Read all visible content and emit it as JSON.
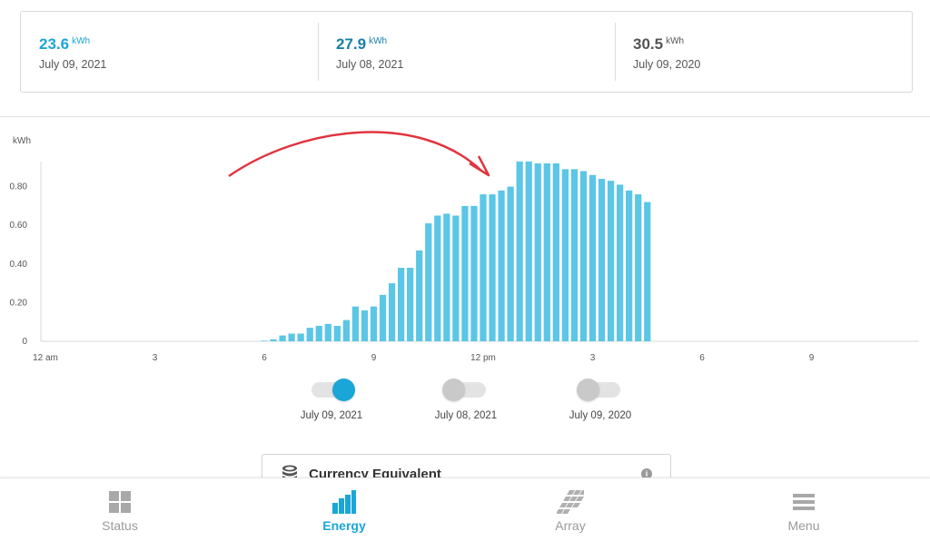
{
  "stats": [
    {
      "value": "23.6",
      "unit": "kWh",
      "date": "July 09, 2021",
      "color": "#1aa6d7"
    },
    {
      "value": "27.9",
      "unit": "kWh",
      "date": "July 08, 2021",
      "color": "#1a7ea8"
    },
    {
      "value": "30.5",
      "unit": "kWh",
      "date": "July 09, 2020",
      "color": "#555555"
    }
  ],
  "chart_data": {
    "type": "bar",
    "ylabel": "kWh",
    "ylim": [
      0,
      0.92
    ],
    "yticks": [
      "0",
      "0.20",
      "0.40",
      "0.60",
      "0.80"
    ],
    "ytick_values": [
      0,
      0.2,
      0.4,
      0.6,
      0.8
    ],
    "xticks": [
      "12 am",
      "3",
      "6",
      "9",
      "12 pm",
      "3",
      "6",
      "9"
    ],
    "xtick_hours": [
      0,
      3,
      6,
      9,
      12,
      15,
      18,
      21
    ],
    "x_start_hour": 6,
    "x_step_hours": 0.25,
    "bar_color": "#5bc6e6",
    "series": [
      {
        "values": [
          0.003,
          0.01,
          0.03,
          0.04,
          0.04,
          0.07,
          0.08,
          0.09,
          0.08,
          0.11,
          0.18,
          0.16,
          0.18,
          0.24,
          0.3,
          0.38,
          0.38,
          0.47,
          0.61,
          0.65,
          0.66,
          0.65,
          0.7,
          0.7,
          0.76,
          0.76,
          0.78,
          0.8,
          0.93,
          0.93,
          0.92,
          0.92,
          0.92,
          0.89,
          0.89,
          0.88,
          0.86,
          0.84,
          0.83,
          0.81,
          0.78,
          0.76,
          0.72
        ]
      }
    ],
    "annotation_arrow_color": "#e0353f"
  },
  "toggles": [
    {
      "label": "July 09, 2021",
      "state": "on"
    },
    {
      "label": "July 08, 2021",
      "state": "off"
    },
    {
      "label": "July 09, 2020",
      "state": "off"
    }
  ],
  "currency_card": {
    "title": "Currency Equivalent",
    "info_icon": "info-icon",
    "coin_icon": "coins-icon"
  },
  "nav": [
    {
      "label": "Status",
      "icon": "grid-icon",
      "active": false
    },
    {
      "label": "Energy",
      "icon": "bar-chart-icon",
      "active": true
    },
    {
      "label": "Array",
      "icon": "solar-panel-icon",
      "active": false
    },
    {
      "label": "Menu",
      "icon": "hamburger-menu-icon",
      "active": false
    }
  ],
  "colors": {
    "accent": "#1aa6d7",
    "inactive": "#9a9a9a"
  }
}
